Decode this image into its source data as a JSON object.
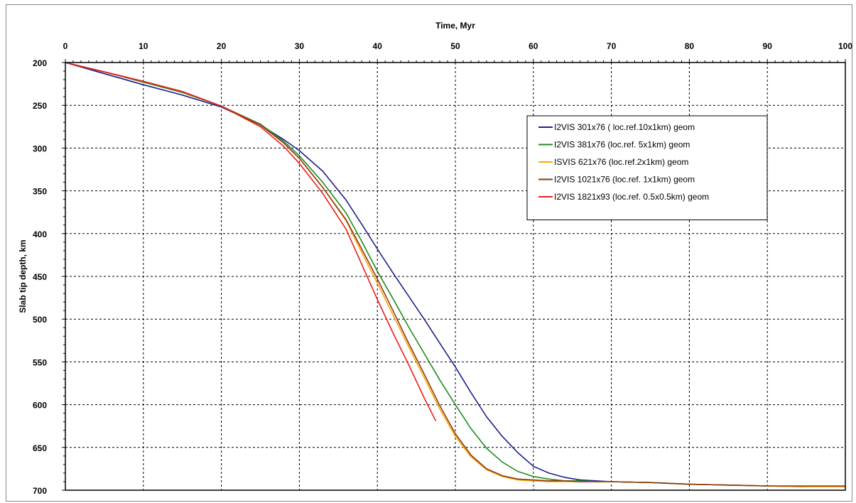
{
  "chart_data": {
    "type": "line",
    "title": "",
    "xlabel": "Time, Myr",
    "ylabel": "Slab tip depth, km",
    "xlim": [
      0,
      100
    ],
    "ylim": [
      200,
      700
    ],
    "y_inverted": true,
    "x_axis_position": "top",
    "grid": true,
    "legend_position": "top-right",
    "xticks": [
      "0",
      "10",
      "20",
      "30",
      "40",
      "50",
      "60",
      "70",
      "80",
      "90",
      "100"
    ],
    "yticks": [
      "200",
      "250",
      "300",
      "350",
      "400",
      "450",
      "500",
      "550",
      "600",
      "650",
      "700"
    ],
    "series": [
      {
        "name": "I2VIS 301x76 ( loc.ref.10x1km) geom",
        "color": "#1a1f8c",
        "x": [
          0,
          5,
          10,
          15,
          20,
          25,
          28,
          30,
          33,
          36,
          38,
          40,
          42,
          44,
          46,
          48,
          50,
          52,
          54,
          56,
          58,
          60,
          62,
          64,
          66,
          68,
          70,
          75,
          80,
          85,
          90,
          95,
          100
        ],
        "y": [
          200,
          213,
          226,
          238,
          252,
          273,
          290,
          303,
          327,
          361,
          389,
          418,
          446,
          473,
          500,
          528,
          556,
          586,
          614,
          637,
          656,
          672,
          680,
          685,
          688,
          689,
          690,
          691,
          693,
          694,
          695,
          696,
          696
        ]
      },
      {
        "name": "I2VIS 381x76 (loc.ref. 5x1km) geom",
        "color": "#1f8c1f",
        "x": [
          0,
          5,
          10,
          15,
          20,
          25,
          28,
          30,
          33,
          36,
          38,
          40,
          42,
          44,
          46,
          48,
          50,
          52,
          54,
          56,
          58,
          60,
          62,
          64,
          66,
          68,
          70,
          75,
          80,
          85,
          90,
          95,
          100
        ],
        "y": [
          200,
          211,
          223,
          235,
          251,
          272,
          292,
          309,
          340,
          376,
          409,
          444,
          476,
          509,
          540,
          571,
          600,
          628,
          651,
          667,
          678,
          684,
          687,
          689,
          689,
          690,
          690,
          691,
          693,
          694,
          695,
          696,
          696
        ]
      },
      {
        "name": "ISVIS 621x76 (loc.ref.2x1km) geom",
        "color": "#ffa500",
        "x": [
          0,
          5,
          10,
          15,
          20,
          25,
          28,
          30,
          33,
          36,
          38,
          40,
          42,
          44,
          46,
          48,
          50,
          52,
          54,
          56,
          58,
          60,
          62,
          64,
          66,
          68,
          70,
          75,
          80,
          85,
          90,
          95,
          100
        ],
        "y": [
          200,
          211,
          222,
          234,
          251,
          273,
          294,
          312,
          346,
          385,
          422,
          458,
          495,
          532,
          568,
          605,
          637,
          661,
          676,
          684,
          688,
          689,
          690,
          690,
          690,
          690,
          690,
          691,
          693,
          694,
          695,
          696,
          696
        ]
      },
      {
        "name": "I2VIS 1021x76 (loc.ref. 1x1km) geom",
        "color": "#8b3a12",
        "x": [
          0,
          5,
          10,
          15,
          20,
          25,
          28,
          30,
          33,
          36,
          38,
          40,
          42,
          44,
          46,
          48,
          50,
          52,
          54,
          56,
          58,
          60,
          62,
          64,
          66,
          68,
          70,
          75,
          80,
          85,
          90,
          95,
          100
        ],
        "y": [
          200,
          211,
          222,
          234,
          251,
          273,
          294,
          312,
          346,
          384,
          418,
          453,
          490,
          528,
          564,
          601,
          634,
          659,
          675,
          683,
          687,
          688,
          689,
          689,
          690,
          690,
          690,
          691,
          693,
          694,
          695,
          695,
          695
        ]
      },
      {
        "name": "I2VIS 1821x93 (loc.ref. 0.5x0.5km) geom",
        "color": "#ee1c1c",
        "x": [
          0,
          5,
          10,
          15,
          20,
          25,
          28,
          30,
          33,
          36,
          38,
          40,
          42,
          44,
          46,
          47.5
        ],
        "y": [
          200,
          211,
          222,
          234,
          251,
          275,
          298,
          318,
          353,
          395,
          436,
          477,
          516,
          553,
          592,
          619
        ]
      }
    ]
  }
}
